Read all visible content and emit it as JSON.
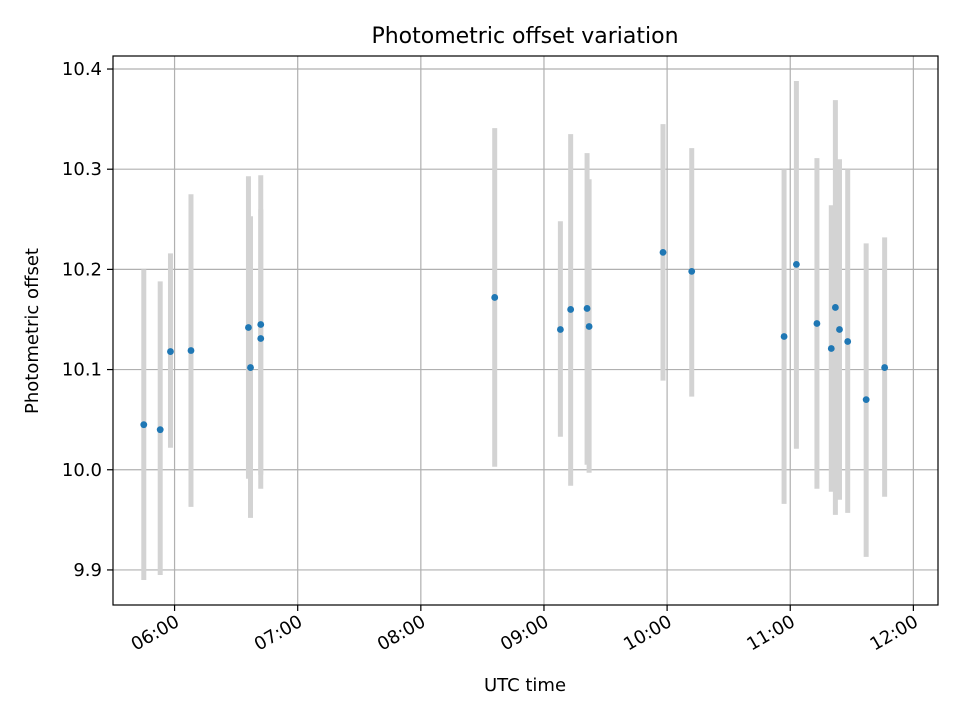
{
  "chart_data": {
    "type": "scatter",
    "title": "Photometric offset variation",
    "xlabel": "UTC time",
    "ylabel": "Photometric offset",
    "x_format": "HH:MM",
    "xlim": [
      "05:30",
      "12:12"
    ],
    "ylim": [
      9.865,
      10.413
    ],
    "x_ticks": [
      "06:00",
      "07:00",
      "08:00",
      "09:00",
      "10:00",
      "11:00",
      "12:00"
    ],
    "y_ticks": [
      9.9,
      10.0,
      10.1,
      10.2,
      10.3,
      10.4
    ],
    "grid": true,
    "errorbar_color": "#d3d3d3",
    "marker_color": "#1f77b4",
    "points": [
      {
        "x": "05:45",
        "y": 10.045,
        "ylow": 9.89,
        "yhigh": 10.2
      },
      {
        "x": "05:53",
        "y": 10.04,
        "ylow": 9.895,
        "yhigh": 10.188
      },
      {
        "x": "05:58",
        "y": 10.118,
        "ylow": 10.022,
        "yhigh": 10.216
      },
      {
        "x": "06:08",
        "y": 10.119,
        "ylow": 9.963,
        "yhigh": 10.275
      },
      {
        "x": "06:36",
        "y": 10.142,
        "ylow": 9.991,
        "yhigh": 10.293
      },
      {
        "x": "06:37",
        "y": 10.102,
        "ylow": 9.952,
        "yhigh": 10.253
      },
      {
        "x": "06:42",
        "y": 10.145,
        "ylow": 9.981,
        "yhigh": 10.294
      },
      {
        "x": "06:42",
        "y": 10.131,
        "ylow": 9.995,
        "yhigh": 10.26
      },
      {
        "x": "08:36",
        "y": 10.172,
        "ylow": 10.003,
        "yhigh": 10.341
      },
      {
        "x": "09:08",
        "y": 10.14,
        "ylow": 10.033,
        "yhigh": 10.248
      },
      {
        "x": "09:13",
        "y": 10.16,
        "ylow": 9.984,
        "yhigh": 10.335
      },
      {
        "x": "09:21",
        "y": 10.161,
        "ylow": 10.005,
        "yhigh": 10.316
      },
      {
        "x": "09:22",
        "y": 10.143,
        "ylow": 9.997,
        "yhigh": 10.29
      },
      {
        "x": "09:58",
        "y": 10.217,
        "ylow": 10.089,
        "yhigh": 10.345
      },
      {
        "x": "10:12",
        "y": 10.198,
        "ylow": 10.073,
        "yhigh": 10.321
      },
      {
        "x": "10:57",
        "y": 10.133,
        "ylow": 9.966,
        "yhigh": 10.3
      },
      {
        "x": "11:03",
        "y": 10.205,
        "ylow": 10.021,
        "yhigh": 10.388
      },
      {
        "x": "11:13",
        "y": 10.146,
        "ylow": 9.981,
        "yhigh": 10.311
      },
      {
        "x": "11:20",
        "y": 10.121,
        "ylow": 9.978,
        "yhigh": 10.264
      },
      {
        "x": "11:22",
        "y": 10.162,
        "ylow": 9.955,
        "yhigh": 10.369
      },
      {
        "x": "11:24",
        "y": 10.14,
        "ylow": 9.97,
        "yhigh": 10.31
      },
      {
        "x": "11:28",
        "y": 10.128,
        "ylow": 9.957,
        "yhigh": 10.3
      },
      {
        "x": "11:37",
        "y": 10.07,
        "ylow": 9.913,
        "yhigh": 10.226
      },
      {
        "x": "11:46",
        "y": 10.102,
        "ylow": 9.973,
        "yhigh": 10.232
      }
    ]
  }
}
